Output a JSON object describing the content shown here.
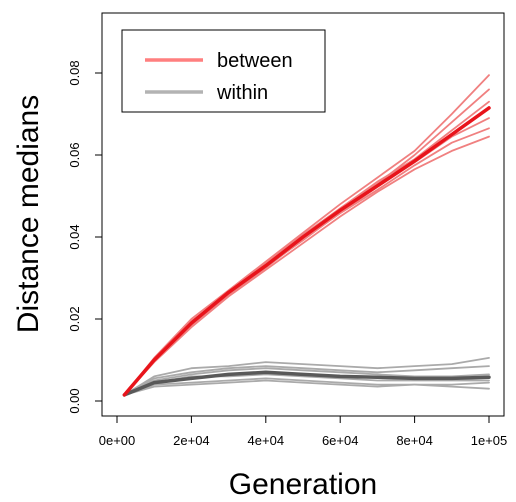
{
  "chart_data": {
    "type": "line",
    "title": "",
    "xlabel": "Generation",
    "ylabel": "Distance medians",
    "xlim": [
      0,
      100000
    ],
    "ylim": [
      0,
      0.09
    ],
    "x_ticks": [
      0,
      20000,
      40000,
      60000,
      80000,
      100000
    ],
    "x_tick_labels": [
      "0e+00",
      "2e+04",
      "4e+04",
      "6e+04",
      "8e+04",
      "1e+05"
    ],
    "y_ticks": [
      0,
      0.02,
      0.04,
      0.06,
      0.08
    ],
    "y_tick_labels": [
      "0.00",
      "0.02",
      "0.04",
      "0.06",
      "0.08"
    ],
    "grid": false,
    "legend": {
      "position": "top-left",
      "entries": [
        {
          "label": "between",
          "color": "#FF7F7F"
        },
        {
          "label": "within",
          "color": "#B3B3B3"
        }
      ]
    },
    "x": [
      2000,
      10000,
      20000,
      30000,
      40000,
      50000,
      60000,
      70000,
      80000,
      90000,
      100000
    ],
    "series": [
      {
        "group": "between",
        "kind": "median",
        "color": "#E8141B",
        "values": [
          0.0015,
          0.01,
          0.019,
          0.0265,
          0.033,
          0.04,
          0.0465,
          0.0525,
          0.0585,
          0.065,
          0.0715
        ]
      },
      {
        "group": "between",
        "kind": "replicate",
        "color": "#F08080",
        "values": [
          0.0015,
          0.0105,
          0.02,
          0.027,
          0.034,
          0.041,
          0.048,
          0.0545,
          0.061,
          0.07,
          0.0795
        ]
      },
      {
        "group": "between",
        "kind": "replicate",
        "color": "#F08080",
        "values": [
          0.0015,
          0.0095,
          0.018,
          0.0255,
          0.032,
          0.0385,
          0.045,
          0.051,
          0.0565,
          0.061,
          0.0645
        ]
      },
      {
        "group": "between",
        "kind": "replicate",
        "color": "#F08080",
        "values": [
          0.0015,
          0.0102,
          0.0195,
          0.0262,
          0.0335,
          0.0395,
          0.047,
          0.053,
          0.06,
          0.068,
          0.076
        ]
      },
      {
        "group": "between",
        "kind": "replicate",
        "color": "#F08080",
        "values": [
          0.0015,
          0.0098,
          0.0185,
          0.026,
          0.0325,
          0.0395,
          0.0458,
          0.0515,
          0.0575,
          0.063,
          0.0665
        ]
      },
      {
        "group": "between",
        "kind": "replicate",
        "color": "#F08080",
        "values": [
          0.0015,
          0.0103,
          0.0192,
          0.0268,
          0.0338,
          0.0405,
          0.047,
          0.0535,
          0.059,
          0.066,
          0.073
        ]
      },
      {
        "group": "between",
        "kind": "replicate",
        "color": "#F08080",
        "values": [
          0.0015,
          0.0097,
          0.0188,
          0.0258,
          0.0328,
          0.0392,
          0.046,
          0.0522,
          0.0582,
          0.0645,
          0.069
        ]
      },
      {
        "group": "within",
        "kind": "median",
        "color": "#595959",
        "values": [
          0.0015,
          0.0045,
          0.0055,
          0.0065,
          0.007,
          0.0065,
          0.006,
          0.0058,
          0.0055,
          0.0055,
          0.0058
        ]
      },
      {
        "group": "within",
        "kind": "replicate",
        "color": "#AAAAAA",
        "values": [
          0.0015,
          0.006,
          0.008,
          0.0085,
          0.0095,
          0.009,
          0.0085,
          0.008,
          0.0085,
          0.009,
          0.0105
        ]
      },
      {
        "group": "within",
        "kind": "replicate",
        "color": "#AAAAAA",
        "values": [
          0.0015,
          0.004,
          0.0045,
          0.005,
          0.0055,
          0.005,
          0.0045,
          0.004,
          0.004,
          0.0035,
          0.003
        ]
      },
      {
        "group": "within",
        "kind": "replicate",
        "color": "#AAAAAA",
        "values": [
          0.0015,
          0.005,
          0.0065,
          0.0075,
          0.008,
          0.0075,
          0.007,
          0.0065,
          0.006,
          0.006,
          0.0065
        ]
      },
      {
        "group": "within",
        "kind": "replicate",
        "color": "#AAAAAA",
        "values": [
          0.0015,
          0.0035,
          0.004,
          0.0045,
          0.005,
          0.0045,
          0.004,
          0.0035,
          0.004,
          0.004,
          0.0045
        ]
      },
      {
        "group": "within",
        "kind": "replicate",
        "color": "#AAAAAA",
        "values": [
          0.0015,
          0.0055,
          0.007,
          0.008,
          0.0085,
          0.008,
          0.0075,
          0.007,
          0.0075,
          0.008,
          0.0085
        ]
      },
      {
        "group": "within",
        "kind": "replicate",
        "color": "#AAAAAA",
        "values": [
          0.0015,
          0.0045,
          0.006,
          0.006,
          0.0065,
          0.006,
          0.0055,
          0.005,
          0.005,
          0.005,
          0.005
        ]
      }
    ]
  }
}
